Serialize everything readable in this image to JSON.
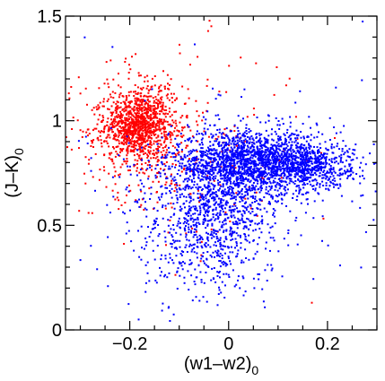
{
  "chart_data": {
    "type": "scatter",
    "title": "",
    "xlabel": "(w1–w2)",
    "xlabel_sub": "0",
    "ylabel": "(J–K)",
    "ylabel_sub": "0",
    "xlim": [
      -0.33,
      0.3
    ],
    "ylim": [
      0,
      1.5
    ],
    "grid": false,
    "x_ticks": [
      {
        "value": -0.2,
        "label": "−0.2"
      },
      {
        "value": 0,
        "label": "0"
      },
      {
        "value": 0.2,
        "label": "0.2"
      }
    ],
    "y_ticks": [
      {
        "value": 0,
        "label": "0"
      },
      {
        "value": 0.5,
        "label": "0.5"
      },
      {
        "value": 1,
        "label": "1"
      },
      {
        "value": 1.5,
        "label": "1.5"
      }
    ],
    "series": [
      {
        "color": "#ff0000",
        "clusters": [
          {
            "cx": -0.185,
            "cy": 0.98,
            "sx": 0.032,
            "sy": 0.075,
            "n": 900
          },
          {
            "cx": -0.17,
            "cy": 0.95,
            "sx": 0.065,
            "sy": 0.16,
            "n": 420
          },
          {
            "cx": -0.06,
            "cy": 0.85,
            "sx": 0.11,
            "sy": 0.25,
            "n": 160
          }
        ]
      },
      {
        "color": "#0000ff",
        "clusters": [
          {
            "cx": 0.05,
            "cy": 0.8,
            "sx": 0.085,
            "sy": 0.075,
            "n": 1900
          },
          {
            "cx": 0.16,
            "cy": 0.78,
            "sx": 0.045,
            "sy": 0.05,
            "n": 400
          },
          {
            "cx": -0.02,
            "cy": 0.58,
            "sx": 0.055,
            "sy": 0.13,
            "n": 650
          },
          {
            "cx": -0.06,
            "cy": 0.4,
            "sx": 0.07,
            "sy": 0.15,
            "n": 300
          },
          {
            "cx": 0.0,
            "cy": 0.7,
            "sx": 0.16,
            "sy": 0.3,
            "n": 200
          }
        ]
      }
    ]
  }
}
